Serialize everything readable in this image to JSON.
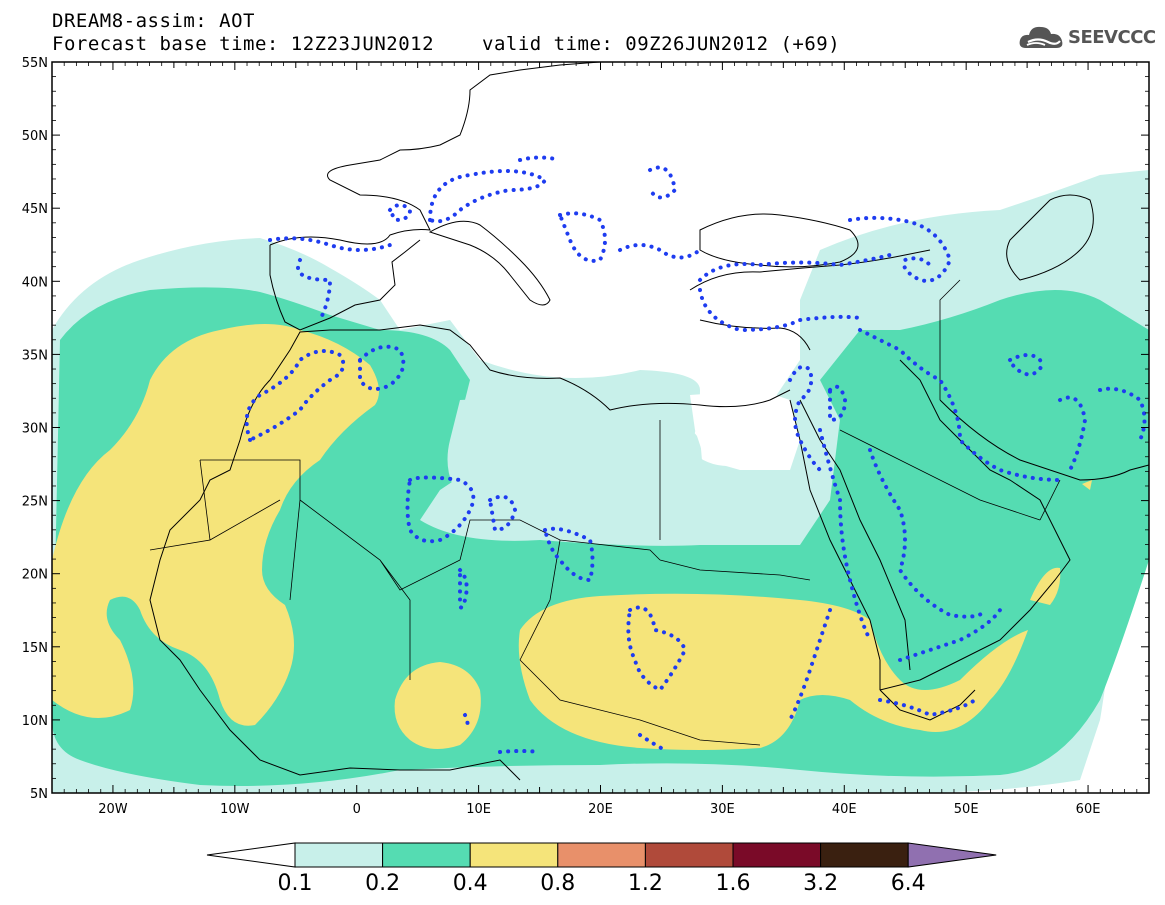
{
  "header": {
    "title_line1": "DREAM8-assim: AOT",
    "title_line2": "Forecast base time: 12Z23JUN2012",
    "valid_time": "valid time: 09Z26JUN2012 (+69)",
    "logo_text": "SEEVCCC"
  },
  "axes": {
    "lat_labels": [
      "55N",
      "50N",
      "45N",
      "40N",
      "35N",
      "30N",
      "25N",
      "20N",
      "15N",
      "10N",
      "5N"
    ],
    "lon_labels": [
      "20W",
      "10W",
      "0",
      "10E",
      "20E",
      "30E",
      "40E",
      "50E",
      "60E"
    ],
    "lat_range": [
      5,
      55
    ],
    "lon_range": [
      -25,
      65
    ]
  },
  "colorbar": {
    "labels": [
      "0.1",
      "0.2",
      "0.4",
      "0.8",
      "1.2",
      "1.6",
      "3.2",
      "6.4"
    ],
    "colors": [
      "#ffffff",
      "#c8f0ea",
      "#55dcb2",
      "#f5e47a",
      "#e8906a",
      "#b04a3a",
      "#7a0a28",
      "#3a2010",
      "#9070b0"
    ]
  },
  "legend_colors": {
    "land_none": "#ffffff",
    "aot_01_02": "#c8f0ea",
    "aot_02_04": "#55dcb2",
    "aot_04_08": "#f5e47a",
    "dotted_contour": "#1e3cf0"
  }
}
